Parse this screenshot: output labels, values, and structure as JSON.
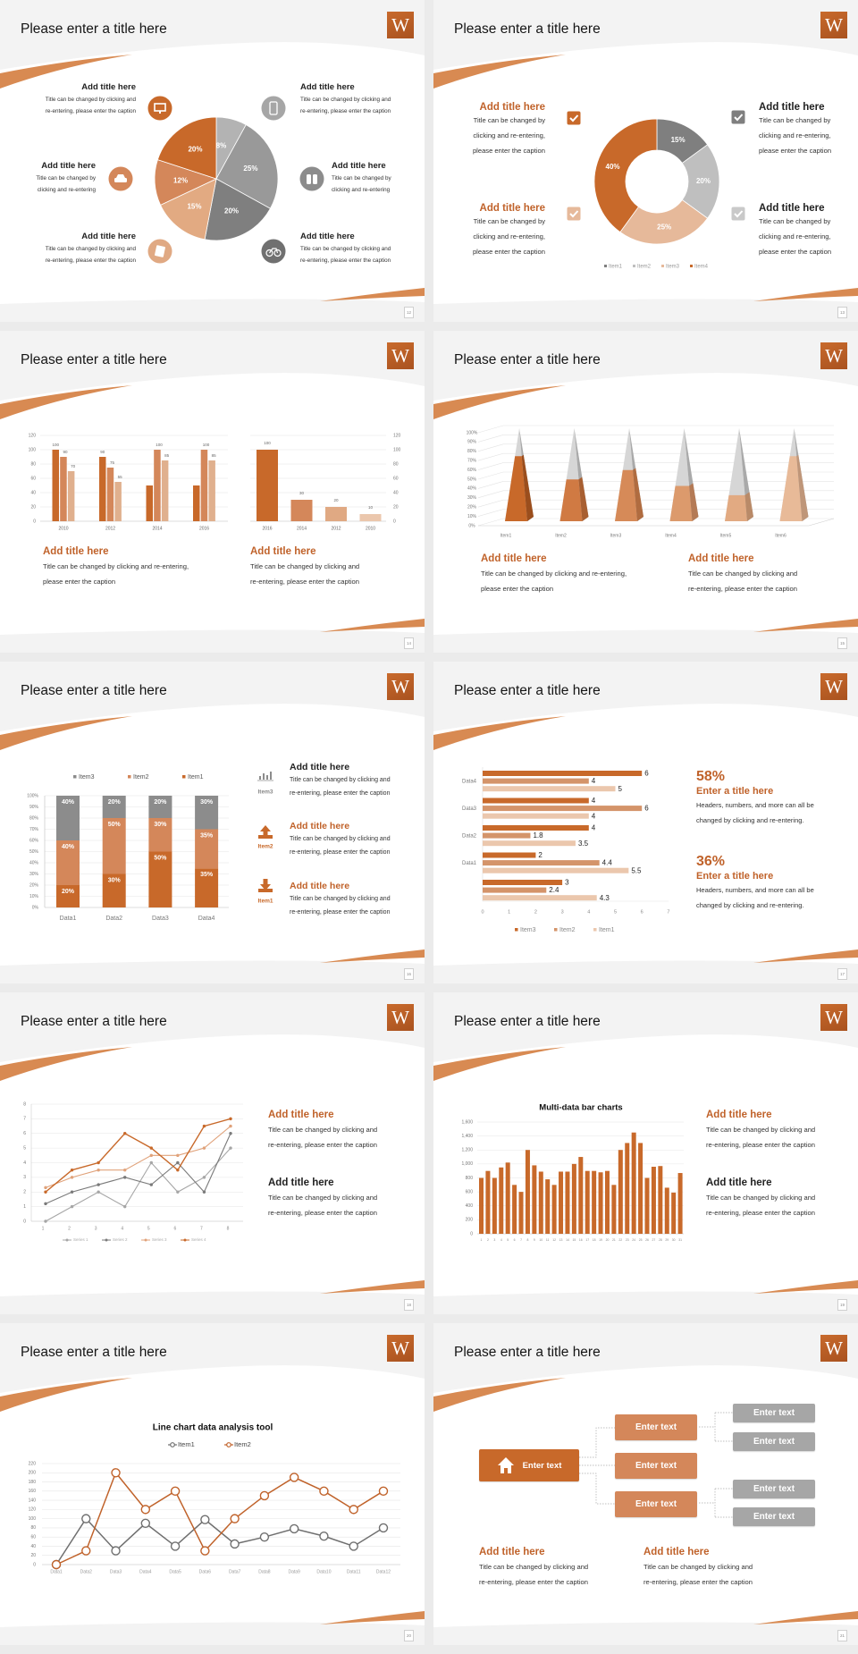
{
  "logo_letter": "W",
  "colors": {
    "orange_dark": "#c8692a",
    "orange_mid": "#d4875a",
    "orange_light": "#e0a983",
    "orange_pale": "#ebc7ad",
    "gray_dark": "#7a7a7a",
    "gray_mid": "#a6a6a6",
    "gray_light": "#c9c9c9"
  },
  "slides": [
    {
      "title": "Please enter a title here",
      "page": "12",
      "blocks": [
        {
          "title": "Add title here",
          "lines": [
            "Title can be changed by clicking and",
            "re-entering, please enter the caption"
          ],
          "icon": "monitor-icon"
        },
        {
          "title": "Add title here",
          "lines": [
            "Title can be changed by",
            "clicking and re-entering"
          ],
          "icon": "car-icon"
        },
        {
          "title": "Add title here",
          "lines": [
            "Title can be changed by clicking and",
            "re-entering, please enter the caption"
          ],
          "icon": "book-icon"
        },
        {
          "title": "Add title here",
          "lines": [
            "Title can be changed by clicking and",
            "re-entering, please enter the caption"
          ],
          "icon": "phone-icon"
        },
        {
          "title": "Add title here",
          "lines": [
            "Title can be changed by",
            "clicking and re-entering"
          ],
          "icon": "binoculars-icon"
        },
        {
          "title": "Add title here",
          "lines": [
            "Title can be changed by clicking and",
            "re-entering, please enter the caption"
          ],
          "icon": "bicycle-icon"
        }
      ]
    },
    {
      "title": "Please enter a title here",
      "page": "13",
      "blocks": [
        {
          "title": "Add title here",
          "lines": [
            "Title can be changed by",
            "clicking and re-entering,",
            "please enter the caption"
          ],
          "icon": "checkbox-icon"
        },
        {
          "title": "Add title here",
          "lines": [
            "Title can be changed by",
            "clicking and re-entering,",
            "please enter the caption"
          ],
          "icon": "checkbox-icon"
        },
        {
          "title": "Add title here",
          "lines": [
            "Title can be changed by",
            "clicking and re-entering,",
            "please enter the caption"
          ],
          "icon": "checkbox-icon"
        },
        {
          "title": "Add title here",
          "lines": [
            "Title can be changed by",
            "clicking and re-entering,",
            "please enter the caption"
          ],
          "icon": "checkbox-icon"
        }
      ]
    },
    {
      "title": "Please enter a title here",
      "page": "14",
      "blocks": [
        {
          "title": "Add title here",
          "lines": [
            "Title can be changed by clicking and re-entering,",
            "please enter the caption"
          ]
        },
        {
          "title": "Add title here",
          "lines": [
            "Title can be changed by clicking and",
            "re-entering, please enter the caption"
          ]
        }
      ]
    },
    {
      "title": "Please enter a title here",
      "page": "15",
      "blocks": [
        {
          "title": "Add title here",
          "lines": [
            "Title can be changed by clicking and re-entering,",
            "please enter the caption"
          ]
        },
        {
          "title": "Add title here",
          "lines": [
            "Title can be changed by clicking and",
            "re-entering, please enter the caption"
          ]
        }
      ]
    },
    {
      "title": "Please enter a title here",
      "page": "16",
      "blocks": [
        {
          "title": "Add title here",
          "lines": [
            "Title can be changed by clicking and",
            "re-entering, please enter the caption"
          ],
          "icon": "bar-chart-icon",
          "icon_label": "Item3"
        },
        {
          "title": "Add title here",
          "lines": [
            "Title can be changed by clicking and",
            "re-entering, please enter the caption"
          ],
          "icon": "upload-icon",
          "icon_label": "Item2"
        },
        {
          "title": "Add title here",
          "lines": [
            "Title can be changed by clicking and",
            "re-entering, please enter the caption"
          ],
          "icon": "download-icon",
          "icon_label": "Item1"
        }
      ]
    },
    {
      "title": "Please enter a title here",
      "page": "17",
      "blocks": [
        {
          "stat": "58%",
          "title": "Enter a title here",
          "lines": [
            "Headers, numbers, and more can all be",
            "changed by clicking and re-entering."
          ]
        },
        {
          "stat": "36%",
          "title": "Enter a title here",
          "lines": [
            "Headers, numbers, and more can all be",
            "changed by clicking and re-entering."
          ]
        }
      ]
    },
    {
      "title": "Please enter a title here",
      "page": "18",
      "blocks": [
        {
          "title": "Add title here",
          "lines": [
            "Title can be changed by clicking and",
            "re-entering, please enter the caption"
          ]
        },
        {
          "title": "Add title here",
          "lines": [
            "Title can be changed by clicking and",
            "re-entering, please enter the caption"
          ]
        }
      ]
    },
    {
      "title": "Please enter a title here",
      "page": "19",
      "blocks": [
        {
          "title": "Add title here",
          "lines": [
            "Title can be changed by clicking and",
            "re-entering, please enter the caption"
          ]
        },
        {
          "title": "Add title here",
          "lines": [
            "Title can be changed by clicking and",
            "re-entering, please enter the caption"
          ]
        }
      ]
    },
    {
      "title": "Please enter a title here",
      "page": "20",
      "blocks": []
    },
    {
      "title": "Please enter a title here",
      "page": "21",
      "diagram": {
        "root": "Enter text",
        "root_icon": "home-icon",
        "middle": [
          "Enter text",
          "Enter text",
          "Enter text"
        ],
        "leaves": [
          "Enter text",
          "Enter text",
          "Enter text",
          "Enter text"
        ]
      },
      "blocks": [
        {
          "title": "Add title here",
          "lines": [
            "Title can be changed by clicking and",
            "re-entering, please enter the caption"
          ]
        },
        {
          "title": "Add title here",
          "lines": [
            "Title can be changed by clicking and",
            "re-entering, please enter the caption"
          ]
        }
      ]
    }
  ],
  "chart_data": [
    {
      "type": "pie",
      "values": [
        8,
        25,
        20,
        15,
        12,
        20
      ],
      "labels": [
        "8%",
        "25%",
        "20%",
        "15%",
        "12%",
        "20%"
      ]
    },
    {
      "type": "pie",
      "donut": true,
      "categories": [
        "Item1",
        "Item2",
        "Item3",
        "Item4"
      ],
      "values": [
        15,
        20,
        25,
        40
      ],
      "labels": [
        "15%",
        "20%",
        "25%",
        "40%"
      ],
      "legend": "bottom"
    },
    {
      "type": "bar",
      "categories": [
        "2010",
        "2012",
        "2014",
        "2016"
      ],
      "series": [
        {
          "values": [
            100,
            90,
            50,
            50
          ],
          "labels": [
            "100",
            "90",
            null,
            null
          ]
        },
        {
          "values": [
            90,
            75,
            100,
            100
          ],
          "labels": [
            "90",
            "75",
            "100",
            "100"
          ]
        },
        {
          "values": [
            70,
            55,
            85,
            85
          ],
          "labels": [
            "70",
            "55",
            "85",
            "85"
          ]
        }
      ],
      "ylim": [
        0,
        120
      ],
      "yticks": [
        "0",
        "20",
        "40",
        "60",
        "80",
        "100",
        "120"
      ],
      "grid": true
    },
    {
      "type": "bar",
      "categories": [
        "2016",
        "2014",
        "2012",
        "2010"
      ],
      "values": [
        100,
        30,
        20,
        10
      ],
      "labels": [
        "100",
        "30",
        "20",
        "10"
      ],
      "ylim": [
        0,
        120
      ],
      "yticks": [
        "0",
        "20",
        "40",
        "60",
        "80",
        "100",
        "120"
      ],
      "y_axis": "right",
      "grid": true
    },
    {
      "type": "bar",
      "style": "3d-pyramid",
      "categories": [
        "Item1",
        "Item2",
        "Item3",
        "Item4",
        "Item5",
        "Item6"
      ],
      "values": [
        70,
        45,
        55,
        38,
        28,
        70
      ],
      "ylim": [
        0,
        100
      ],
      "yticks": [
        "0%",
        "10%",
        "20%",
        "30%",
        "40%",
        "50%",
        "60%",
        "70%",
        "80%",
        "90%",
        "100%"
      ],
      "grid": true
    },
    {
      "type": "bar",
      "stacked": true,
      "categories": [
        "Data1",
        "Data2",
        "Data3",
        "Data4"
      ],
      "series": [
        {
          "name": "Item1",
          "values": [
            20,
            30,
            50,
            35
          ],
          "labels": [
            "20%",
            "30%",
            "50%",
            "35%"
          ]
        },
        {
          "name": "Item2",
          "values": [
            40,
            50,
            30,
            35
          ],
          "labels": [
            "40%",
            "50%",
            "30%",
            "35%"
          ]
        },
        {
          "name": "Item3",
          "values": [
            40,
            20,
            20,
            30
          ],
          "labels": [
            "40%",
            "20%",
            "20%",
            "30%"
          ]
        }
      ],
      "legend_order": [
        "Item3",
        "Item2",
        "Item1"
      ],
      "ylim": [
        0,
        100
      ],
      "yticks": [
        "0%",
        "10%",
        "20%",
        "30%",
        "40%",
        "50%",
        "60%",
        "70%",
        "80%",
        "90%",
        "100%"
      ],
      "legend": "top",
      "grid": true
    },
    {
      "type": "bar",
      "orientation": "horizontal",
      "categories": [
        "Data4",
        "Data3",
        "Data2",
        "Data1",
        ""
      ],
      "series": [
        {
          "name": "Item3",
          "values": [
            6,
            4,
            4,
            2,
            3
          ],
          "labels": [
            "6",
            "4",
            "4",
            "2",
            "3"
          ]
        },
        {
          "name": "Item2",
          "values": [
            4,
            6,
            1.8,
            4.4,
            2.4
          ],
          "labels": [
            "4",
            "6",
            "1.8",
            "4.4",
            "2.4"
          ]
        },
        {
          "name": "Item1",
          "values": [
            5,
            4,
            3.5,
            5.5,
            4.3
          ],
          "labels": [
            "5",
            "4",
            "3.5",
            "5.5",
            "4.3"
          ]
        }
      ],
      "xlim": [
        0,
        7
      ],
      "xticks": [
        "0",
        "1",
        "2",
        "3",
        "4",
        "5",
        "6",
        "7"
      ],
      "legend": "bottom"
    },
    {
      "type": "line",
      "x": [
        "1",
        "2",
        "3",
        "4",
        "5",
        "6",
        "7",
        "8"
      ],
      "series": [
        {
          "name": "Series 1",
          "values": [
            0,
            1,
            2,
            1,
            4,
            2,
            3,
            5
          ]
        },
        {
          "name": "Series 2",
          "values": [
            1.2,
            2,
            2.5,
            3,
            2.5,
            4,
            2,
            6
          ]
        },
        {
          "name": "Series 3",
          "values": [
            2.3,
            3,
            3.5,
            3.5,
            4.5,
            4.5,
            5,
            6.5
          ]
        },
        {
          "name": "Series 4",
          "values": [
            2,
            3.5,
            4,
            6,
            5,
            3.5,
            6.5,
            7
          ]
        }
      ],
      "ylim": [
        0,
        8
      ],
      "yticks": [
        "0",
        "1",
        "2",
        "3",
        "4",
        "5",
        "6",
        "7",
        "8"
      ],
      "legend": "bottom",
      "grid": true
    },
    {
      "type": "bar",
      "title": "Multi-data bar charts",
      "categories": [
        "1",
        "2",
        "3",
        "4",
        "5",
        "6",
        "7",
        "8",
        "9",
        "10",
        "11",
        "12",
        "13",
        "14",
        "15",
        "16",
        "17",
        "18",
        "19",
        "20",
        "21",
        "22",
        "23",
        "24",
        "25",
        "26",
        "27",
        "28",
        "29",
        "30",
        "31"
      ],
      "values": [
        800,
        900,
        800,
        950,
        1020,
        700,
        600,
        1200,
        980,
        890,
        780,
        700,
        890,
        890,
        1000,
        1100,
        900,
        900,
        880,
        900,
        700,
        1200,
        1300,
        1450,
        1300,
        800,
        960,
        970,
        660,
        590,
        870
      ],
      "ylim": [
        0,
        1600
      ],
      "yticks": [
        "0",
        "200",
        "400",
        "600",
        "800",
        "1,000",
        "1,200",
        "1,400",
        "1,600"
      ],
      "grid": true
    },
    {
      "type": "line",
      "title": "Line chart data analysis tool",
      "x": [
        "Data1",
        "Data2",
        "Data3",
        "Data4",
        "Data5",
        "Data6",
        "Data7",
        "Data8",
        "Data9",
        "Data10",
        "Data11",
        "Data12"
      ],
      "series": [
        {
          "name": "Item1",
          "values": [
            0,
            100,
            30,
            90,
            40,
            98,
            45,
            60,
            78,
            62,
            40,
            80
          ]
        },
        {
          "name": "Item2",
          "values": [
            0,
            30,
            200,
            120,
            160,
            30,
            100,
            150,
            190,
            160,
            120,
            160
          ]
        }
      ],
      "ylim": [
        0,
        220
      ],
      "yticks": [
        "0",
        "20",
        "40",
        "60",
        "80",
        "100",
        "120",
        "140",
        "160",
        "180",
        "200",
        "220"
      ],
      "legend": "top",
      "grid": true
    }
  ]
}
